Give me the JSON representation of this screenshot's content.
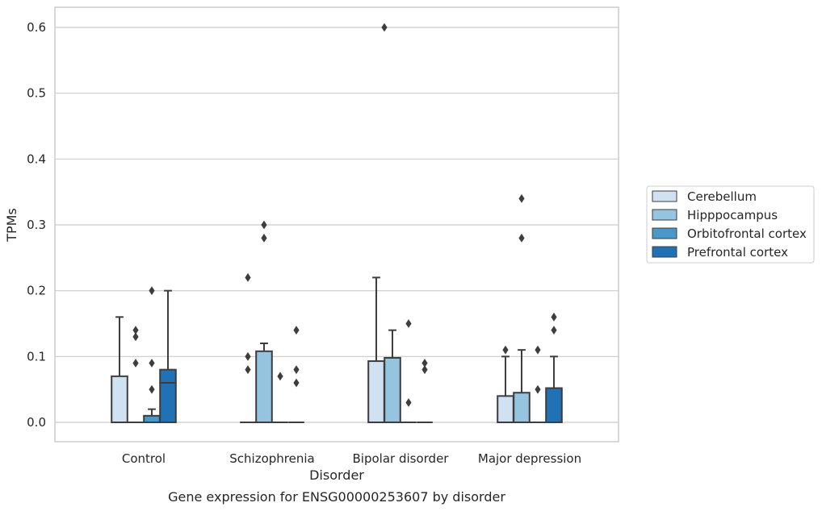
{
  "chart_data": {
    "type": "box",
    "caption": "Gene expression for ENSG00000253607 by disorder",
    "xlabel": "Disorder",
    "ylabel": "TPMs",
    "ylim": [
      -0.03,
      0.63
    ],
    "yticks": [
      0.0,
      0.1,
      0.2,
      0.3,
      0.4,
      0.5,
      0.6
    ],
    "ytick_labels": [
      "0.0",
      "0.1",
      "0.2",
      "0.3",
      "0.4",
      "0.5",
      "0.6"
    ],
    "grid": "horizontal",
    "legend_position": "right",
    "categories": [
      "Control",
      "Schizophrenia",
      "Bipolar disorder",
      "Major depression"
    ],
    "series": [
      {
        "name": "Cerebellum",
        "color": "#d0e1f2",
        "boxes": [
          {
            "q1": 0.0,
            "median": 0.0,
            "q3": 0.07,
            "whisker_low": 0.0,
            "whisker_high": 0.16,
            "outliers": []
          },
          {
            "q1": 0.0,
            "median": 0.0,
            "q3": 0.0,
            "whisker_low": 0.0,
            "whisker_high": 0.0,
            "outliers": [
              0.22,
              0.1,
              0.08
            ]
          },
          {
            "q1": 0.0,
            "median": 0.0,
            "q3": 0.093,
            "whisker_low": 0.0,
            "whisker_high": 0.22,
            "outliers": []
          },
          {
            "q1": 0.0,
            "median": 0.0,
            "q3": 0.04,
            "whisker_low": 0.0,
            "whisker_high": 0.1,
            "outliers": [
              0.11
            ]
          }
        ]
      },
      {
        "name": "Hipppocampus",
        "color": "#94c4df",
        "boxes": [
          {
            "q1": 0.0,
            "median": 0.0,
            "q3": 0.0,
            "whisker_low": 0.0,
            "whisker_high": 0.0,
            "outliers": [
              0.14,
              0.13,
              0.09
            ]
          },
          {
            "q1": 0.0,
            "median": 0.0,
            "q3": 0.108,
            "whisker_low": 0.0,
            "whisker_high": 0.12,
            "outliers": [
              0.3,
              0.28
            ]
          },
          {
            "q1": 0.0,
            "median": 0.0,
            "q3": 0.098,
            "whisker_low": 0.0,
            "whisker_high": 0.14,
            "outliers": []
          },
          {
            "q1": 0.0,
            "median": 0.0,
            "q3": 0.045,
            "whisker_low": 0.0,
            "whisker_high": 0.11,
            "outliers": [
              0.34,
              0.28
            ]
          }
        ]
      },
      {
        "name": "Orbitofrontal cortex",
        "color": "#4a98c9",
        "boxes": [
          {
            "q1": 0.0,
            "median": 0.0,
            "q3": 0.01,
            "whisker_low": 0.0,
            "whisker_high": 0.02,
            "outliers": [
              0.2,
              0.09,
              0.05
            ]
          },
          {
            "q1": 0.0,
            "median": 0.0,
            "q3": 0.0,
            "whisker_low": 0.0,
            "whisker_high": 0.0,
            "outliers": [
              0.07
            ]
          },
          {
            "q1": 0.0,
            "median": 0.0,
            "q3": 0.0,
            "whisker_low": 0.0,
            "whisker_high": 0.0,
            "outliers": [
              0.15,
              0.03
            ]
          },
          {
            "q1": 0.0,
            "median": 0.0,
            "q3": 0.0,
            "whisker_low": 0.0,
            "whisker_high": 0.0,
            "outliers": [
              0.11,
              0.05
            ]
          }
        ]
      },
      {
        "name": "Prefrontal cortex",
        "color": "#2171b5",
        "boxes": [
          {
            "q1": 0.0,
            "median": 0.06,
            "q3": 0.08,
            "whisker_low": 0.0,
            "whisker_high": 0.2,
            "outliers": []
          },
          {
            "q1": 0.0,
            "median": 0.0,
            "q3": 0.0,
            "whisker_low": 0.0,
            "whisker_high": 0.0,
            "outliers": [
              0.14,
              0.08,
              0.06
            ]
          },
          {
            "q1": 0.0,
            "median": 0.0,
            "q3": 0.0,
            "whisker_low": 0.0,
            "whisker_high": 0.0,
            "outliers": [
              0.09,
              0.08
            ]
          },
          {
            "q1": 0.0,
            "median": 0.0,
            "q3": 0.052,
            "whisker_low": 0.0,
            "whisker_high": 0.1,
            "outliers": [
              0.16,
              0.14
            ]
          }
        ]
      }
    ],
    "extra_outliers": [
      {
        "category_index": 2,
        "x_offset": 0.5,
        "value": 0.6
      }
    ]
  }
}
